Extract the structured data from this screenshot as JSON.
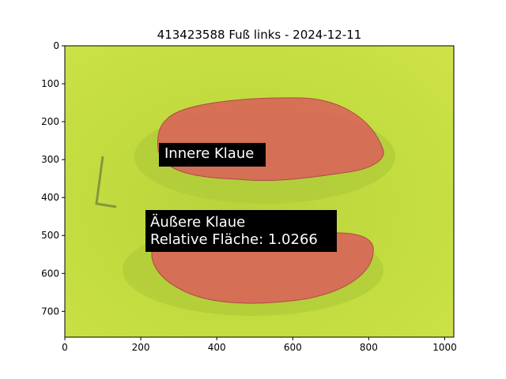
{
  "chart_data": {
    "type": "image",
    "title": "413423588 Fuß links - 2024-12-11",
    "xlabel": "",
    "ylabel": "",
    "xlim": [
      0,
      1024
    ],
    "ylim": [
      768,
      0
    ],
    "xticks": [
      0,
      200,
      400,
      600,
      800,
      1000
    ],
    "yticks": [
      0,
      100,
      200,
      300,
      400,
      500,
      600,
      700
    ],
    "grid": false,
    "colors": {
      "background_mat": "#c3dc3c",
      "mask_overlay": "#d9625a"
    },
    "annotations": [
      {
        "text": "Innere Klaue",
        "x": 260,
        "y": 285
      },
      {
        "lines": [
          "Äußere Klaue",
          "Relative Fläche: 1.0266"
        ],
        "x": 222,
        "y": 462
      }
    ]
  }
}
